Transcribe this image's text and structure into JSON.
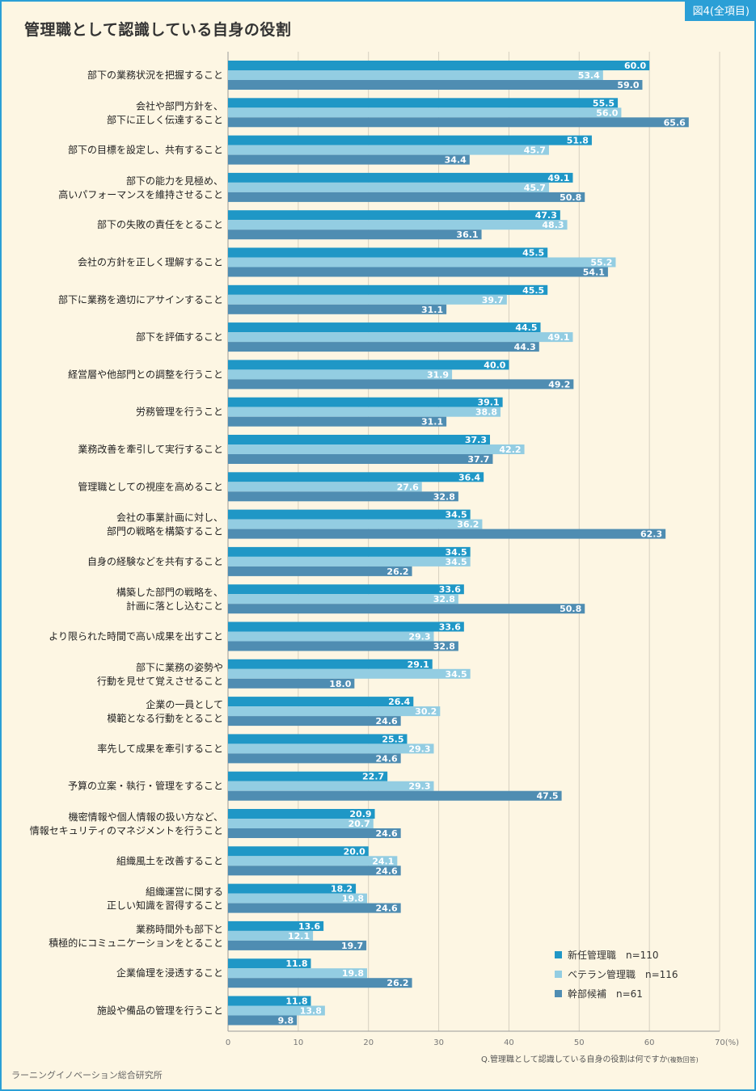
{
  "badge": "図4(全項目)",
  "title": "管理職として認識している自身の役割",
  "question": "Q.管理職として認識している自身の役割は何ですか",
  "question_note": "(複数回答)",
  "credit": "ラーニングイノベーション総合研究所",
  "colors": {
    "new": "#1f97c6",
    "veteran": "#93cde2",
    "exec": "#4f8db2",
    "grid": "#d6d0c0",
    "axis": "#999999",
    "label_pale": "#ffffff"
  },
  "chart_data": {
    "type": "bar",
    "orientation": "horizontal",
    "title": "管理職として認識している自身の役割",
    "xlim": [
      0,
      70
    ],
    "xticks": [
      "0",
      "10",
      "20",
      "30",
      "40",
      "50",
      "60",
      "70"
    ],
    "x_unit": "(%)",
    "grid": true,
    "legend_position": "bottom-right",
    "categories": [
      [
        "部下の業務状況を把握すること"
      ],
      [
        "会社や部門方針を、",
        "部下に正しく伝達すること"
      ],
      [
        "部下の目標を設定し、共有すること"
      ],
      [
        "部下の能力を見極め、",
        "高いパフォーマンスを維持させること"
      ],
      [
        "部下の失敗の責任をとること"
      ],
      [
        "会社の方針を正しく理解すること"
      ],
      [
        "部下に業務を適切にアサインすること"
      ],
      [
        "部下を評価すること"
      ],
      [
        "経営層や他部門との調整を行うこと"
      ],
      [
        "労務管理を行うこと"
      ],
      [
        "業務改善を牽引して実行すること"
      ],
      [
        "管理職としての視座を高めること"
      ],
      [
        "会社の事業計画に対し、",
        "部門の戦略を構築すること"
      ],
      [
        "自身の経験などを共有すること"
      ],
      [
        "構築した部門の戦略を、",
        "計画に落とし込むこと"
      ],
      [
        "より限られた時間で高い成果を出すこと"
      ],
      [
        "部下に業務の姿勢や",
        "行動を見せて覚えさせること"
      ],
      [
        "企業の一員として",
        "模範となる行動をとること"
      ],
      [
        "率先して成果を牽引すること"
      ],
      [
        "予算の立案・執行・管理をすること"
      ],
      [
        "機密情報や個人情報の扱い方など、",
        "情報セキュリティのマネジメントを行うこと"
      ],
      [
        "組織風土を改善すること"
      ],
      [
        "組織運営に関する",
        "正しい知識を習得すること"
      ],
      [
        "業務時間外も部下と",
        "積極的にコミュニケーションをとること"
      ],
      [
        "企業倫理を浸透すること"
      ],
      [
        "施設や備品の管理を行うこと"
      ]
    ],
    "series": [
      {
        "name": "新任管理職",
        "n": "n=110",
        "color": "#1f97c6",
        "values": [
          60.0,
          55.5,
          51.8,
          49.1,
          47.3,
          45.5,
          45.5,
          44.5,
          40.0,
          39.1,
          37.3,
          36.4,
          34.5,
          34.5,
          33.6,
          33.6,
          29.1,
          26.4,
          25.5,
          22.7,
          20.9,
          20.0,
          18.2,
          13.6,
          11.8,
          11.8
        ]
      },
      {
        "name": "ベテラン管理職",
        "n": "n=116",
        "color": "#93cde2",
        "values": [
          53.4,
          56.0,
          45.7,
          45.7,
          48.3,
          55.2,
          39.7,
          49.1,
          31.9,
          38.8,
          42.2,
          27.6,
          36.2,
          34.5,
          32.8,
          29.3,
          34.5,
          30.2,
          29.3,
          29.3,
          20.7,
          24.1,
          19.8,
          12.1,
          19.8,
          13.8
        ]
      },
      {
        "name": "幹部候補",
        "n": "n=61",
        "color": "#4f8db2",
        "values": [
          59.0,
          65.6,
          34.4,
          50.8,
          36.1,
          54.1,
          31.1,
          44.3,
          49.2,
          31.1,
          37.7,
          32.8,
          62.3,
          26.2,
          50.8,
          32.8,
          18.0,
          24.6,
          24.6,
          47.5,
          24.6,
          24.6,
          24.6,
          19.7,
          26.2,
          9.8
        ]
      }
    ]
  }
}
